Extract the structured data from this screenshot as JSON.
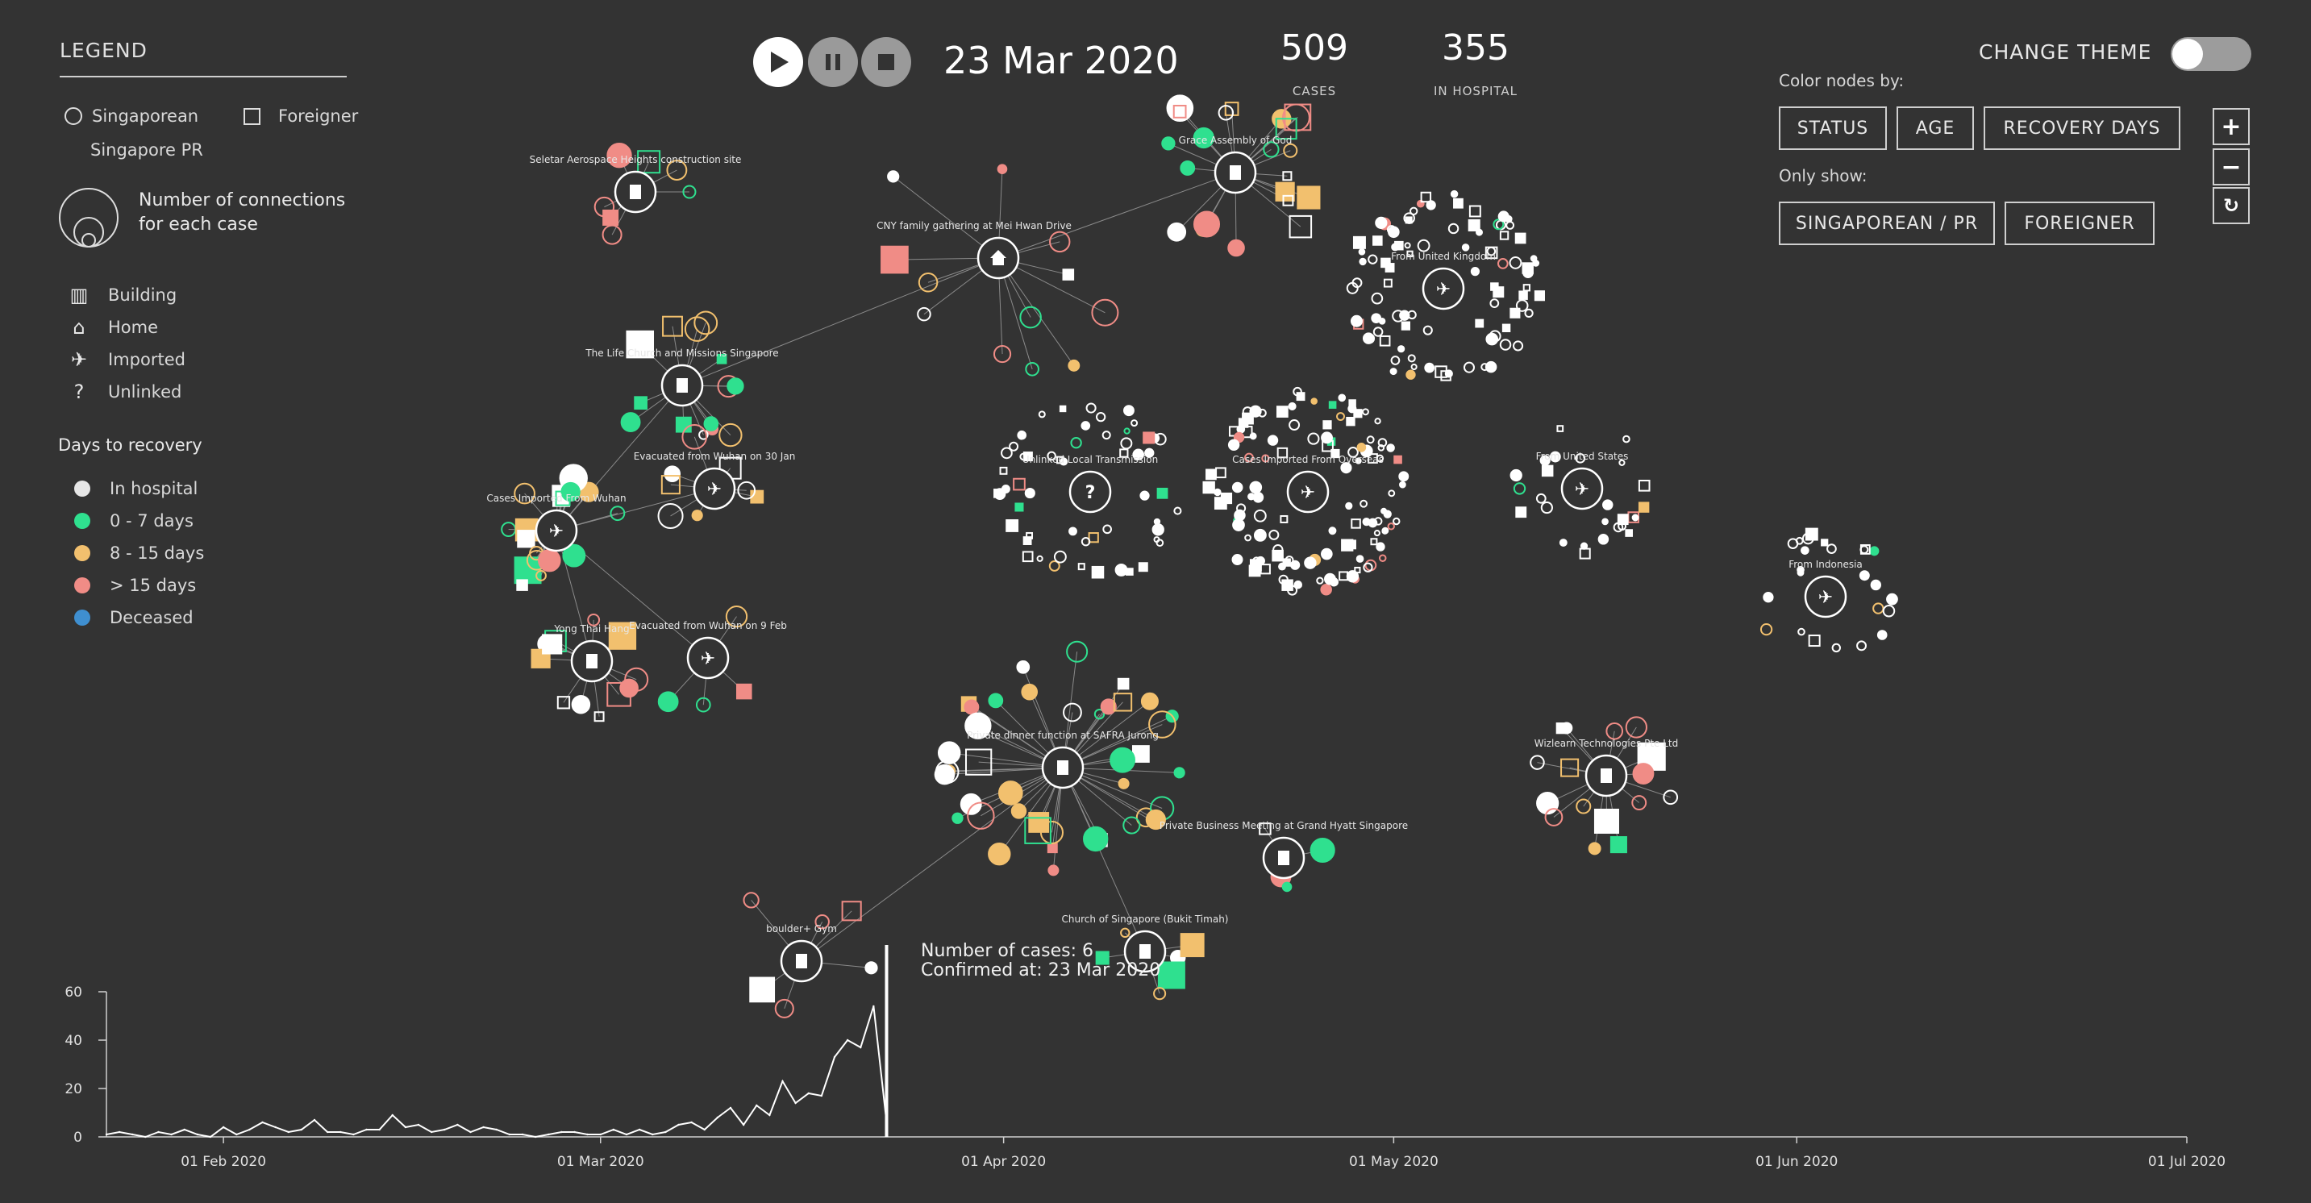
{
  "legend": {
    "title": "LEGEND",
    "singaporean": "Singaporean",
    "foreigner": "Foreigner",
    "singapore_pr": "Singapore PR",
    "connections_label": "Number of connections for each case",
    "types": [
      {
        "icon": "building-icon",
        "label": "Building"
      },
      {
        "icon": "home-icon",
        "label": "Home"
      },
      {
        "icon": "airplane-icon",
        "label": "Imported"
      },
      {
        "icon": "question-icon",
        "label": "Unlinked"
      }
    ],
    "recovery_title": "Days to recovery",
    "recovery": [
      {
        "label": "In hospital",
        "color": "#e6e6e6"
      },
      {
        "label": "0 - 7 days",
        "color": "#2fe08f"
      },
      {
        "label": "8 - 15 days",
        "color": "#f2c06e"
      },
      {
        "label": "> 15 days",
        "color": "#f08c86"
      },
      {
        "label": "Deceased",
        "color": "#3f8fd0"
      }
    ]
  },
  "playback": {
    "play": "play-icon",
    "pause": "pause-icon",
    "stop": "stop-icon",
    "date": "23 Mar 2020"
  },
  "stats": {
    "cases_value": "509",
    "cases_label": "CASES",
    "hospital_value": "355",
    "hospital_label": "IN HOSPITAL"
  },
  "theme": {
    "label": "CHANGE THEME"
  },
  "color_by": {
    "label": "Color nodes by:",
    "options": [
      "STATUS",
      "AGE",
      "RECOVERY DAYS"
    ]
  },
  "only_show": {
    "label": "Only show:",
    "options": [
      "SINGAPOREAN / PR",
      "FOREIGNER"
    ]
  },
  "zoom": {
    "in": "+",
    "out": "−",
    "reset": "↻"
  },
  "clusters": [
    "Seletar Aerospace Heights construction site",
    "Grace Assembly of God",
    "CNY family gathering at Mei Hwan Drive",
    "From United Kingdom",
    "The Life Church and Missions Singapore",
    "Evacuated from Wuhan on 30 Jan",
    "Unlinked Local Transmission",
    "Cases Imported From Overseas",
    "From United States",
    "Cases Imported From Wuhan",
    "From Indonesia",
    "Yong Thai Hang",
    "Evacuated from Wuhan on 9 Feb",
    "Private dinner function at SAFRA Jurong",
    "Wizlearn Technologies Pte Ltd",
    "Private Business Meeting at Grand Hyatt Singapore",
    "boulder+ Gym",
    "Church of Singapore (Bukit Timah)"
  ],
  "tooltip": {
    "line1": "Number of cases: 6",
    "line2": "Confirmed at: 23 Mar 2020"
  },
  "chart_data": {
    "type": "line",
    "x_tick_labels": [
      "01 Feb 2020",
      "01 Mar 2020",
      "01 Apr 2020",
      "01 May 2020",
      "01 Jun 2020",
      "01 Jul 2020"
    ],
    "y_tick_labels": [
      "0",
      "20",
      "40",
      "60"
    ],
    "ylim": [
      0,
      60
    ],
    "x": [
      "2020-01-23",
      "2020-01-24",
      "2020-01-25",
      "2020-01-26",
      "2020-01-27",
      "2020-01-28",
      "2020-01-29",
      "2020-01-30",
      "2020-01-31",
      "2020-02-01",
      "2020-02-02",
      "2020-02-03",
      "2020-02-04",
      "2020-02-05",
      "2020-02-06",
      "2020-02-07",
      "2020-02-08",
      "2020-02-09",
      "2020-02-10",
      "2020-02-11",
      "2020-02-12",
      "2020-02-13",
      "2020-02-14",
      "2020-02-15",
      "2020-02-16",
      "2020-02-17",
      "2020-02-18",
      "2020-02-19",
      "2020-02-20",
      "2020-02-21",
      "2020-02-22",
      "2020-02-23",
      "2020-02-24",
      "2020-02-25",
      "2020-02-26",
      "2020-02-27",
      "2020-02-28",
      "2020-02-29",
      "2020-03-01",
      "2020-03-02",
      "2020-03-03",
      "2020-03-04",
      "2020-03-05",
      "2020-03-06",
      "2020-03-07",
      "2020-03-08",
      "2020-03-09",
      "2020-03-10",
      "2020-03-11",
      "2020-03-12",
      "2020-03-13",
      "2020-03-14",
      "2020-03-15",
      "2020-03-16",
      "2020-03-17",
      "2020-03-18",
      "2020-03-19",
      "2020-03-20",
      "2020-03-21",
      "2020-03-22",
      "2020-03-23"
    ],
    "values": [
      1,
      2,
      1,
      0,
      2,
      1,
      3,
      1,
      0,
      4,
      1,
      3,
      6,
      4,
      2,
      3,
      7,
      2,
      2,
      1,
      3,
      3,
      9,
      4,
      5,
      2,
      3,
      5,
      2,
      4,
      3,
      1,
      1,
      0,
      1,
      2,
      2,
      1,
      1,
      3,
      1,
      3,
      1,
      2,
      5,
      6,
      3,
      8,
      12,
      5,
      13,
      9,
      23,
      14,
      18,
      17,
      33,
      40,
      37,
      54,
      6
    ]
  }
}
